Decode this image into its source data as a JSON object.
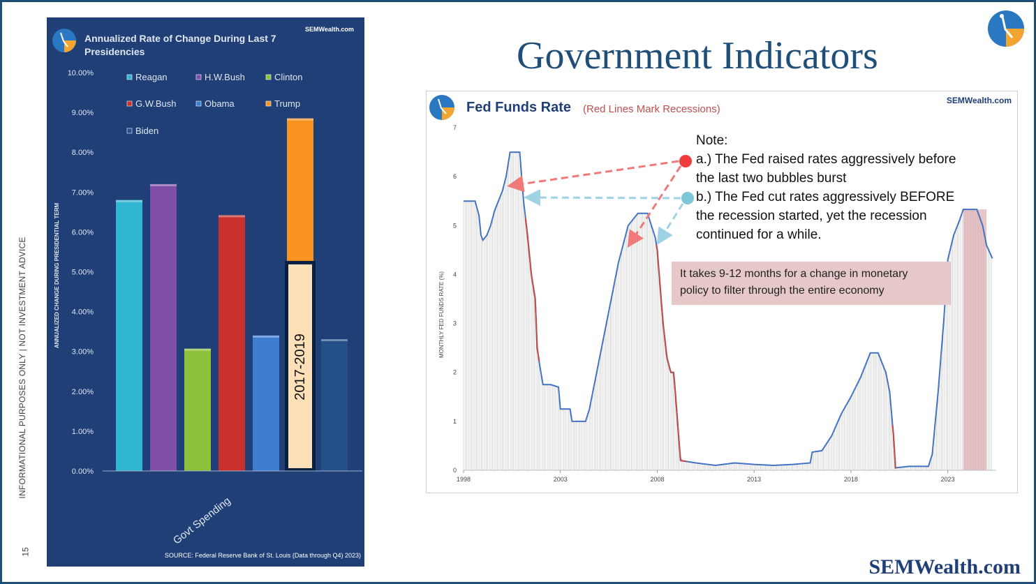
{
  "page": {
    "title": "Government Indicators",
    "side_note": "INFORMATIONAL PURPOSES ONLY | NOT INVESTMENT ADVICE",
    "page_number": "15",
    "brand": "SEMWealth.com"
  },
  "colors": {
    "panel_bg": "#1f3f76",
    "title_blue": "#1f4e79",
    "recession_red": "#c0504d",
    "rate_line": "#4472c4",
    "note_box": "#e6c8c8"
  },
  "chart_data": [
    {
      "type": "bar",
      "title": "Annualized Rate of Change During Last 7 Presidencies",
      "site": "SEMWealth.com",
      "xlabel": "Govt Spending",
      "ylabel": "ANNUALIZED CHANGE DURING PRESIDENTIAL TERM",
      "ylim": [
        0,
        10
      ],
      "yticks": [
        "0.00%",
        "1.00%",
        "2.00%",
        "3.00%",
        "4.00%",
        "5.00%",
        "6.00%",
        "7.00%",
        "8.00%",
        "9.00%",
        "10.00%"
      ],
      "categories": [
        "Govt Spending"
      ],
      "series": [
        {
          "name": "Reagan",
          "values": [
            6.8
          ],
          "color": "#2fb5cf"
        },
        {
          "name": "H.W.Bush",
          "values": [
            7.2
          ],
          "color": "#7f4fa8"
        },
        {
          "name": "Clinton",
          "values": [
            3.07
          ],
          "color": "#8cbf3a"
        },
        {
          "name": "G.W.Bush",
          "values": [
            6.42
          ],
          "color": "#c9302c"
        },
        {
          "name": "Obama",
          "values": [
            3.4
          ],
          "color": "#3d7ed1"
        },
        {
          "name": "Trump",
          "values": [
            8.85
          ],
          "color": "#f7931e"
        },
        {
          "name": "Biden",
          "values": [
            3.31
          ],
          "color": "#244f88"
        }
      ],
      "annotation": {
        "label": "2017-2019",
        "value": 5.22
      },
      "source": "SOURCE:  Federal Reserve Bank of St. Louis (Data through Q4) 2023)",
      "legend_position": "top"
    },
    {
      "type": "line",
      "title": "Fed Funds Rate",
      "subtitle": "(Red Lines Mark Recessions)",
      "site": "SEMWealth.com",
      "ylabel": "MONTHLY FED FUNDS RATE (%)",
      "ylim": [
        0,
        7
      ],
      "yticks": [
        "0",
        "1",
        "2",
        "3",
        "4",
        "5",
        "6",
        "7"
      ],
      "xlim": [
        1998,
        2025.5
      ],
      "xticks": [
        "1998",
        "2003",
        "2008",
        "2013",
        "2018",
        "2023"
      ],
      "x": [
        1998.0,
        1998.3,
        1998.6,
        1998.8,
        1998.9,
        1999.0,
        1999.2,
        1999.4,
        1999.6,
        1999.8,
        2000.0,
        2000.2,
        2000.4,
        2000.5,
        2000.7,
        2000.9,
        2001.0,
        2001.1,
        2001.3,
        2001.5,
        2001.7,
        2001.8,
        2001.95,
        2002.1,
        2002.5,
        2002.9,
        2003.0,
        2003.5,
        2003.6,
        2004.0,
        2004.3,
        2004.5,
        2005.0,
        2005.5,
        2006.0,
        2006.5,
        2007.0,
        2007.3,
        2007.5,
        2007.7,
        2007.9,
        2008.0,
        2008.1,
        2008.3,
        2008.5,
        2008.7,
        2008.85,
        2008.95,
        2009.2,
        2010.0,
        2011.0,
        2012.0,
        2013.0,
        2014.0,
        2015.0,
        2015.9,
        2016.0,
        2016.5,
        2017.0,
        2017.5,
        2018.0,
        2018.5,
        2019.0,
        2019.4,
        2019.6,
        2019.8,
        2020.0,
        2020.2,
        2020.3,
        2021.0,
        2022.0,
        2022.2,
        2022.5,
        2022.8,
        2023.0,
        2023.3,
        2023.6,
        2023.8,
        2024.5,
        2024.8,
        2025.0,
        2025.3
      ],
      "y": [
        5.5,
        5.5,
        5.5,
        5.2,
        4.8,
        4.7,
        4.8,
        5.0,
        5.3,
        5.5,
        5.7,
        6.0,
        6.5,
        6.5,
        6.5,
        6.5,
        6.0,
        5.5,
        4.8,
        4.0,
        3.5,
        2.5,
        2.1,
        1.75,
        1.75,
        1.7,
        1.25,
        1.25,
        1.0,
        1.0,
        1.0,
        1.25,
        2.25,
        3.25,
        4.25,
        5.0,
        5.25,
        5.25,
        5.25,
        5.0,
        4.75,
        4.5,
        4.0,
        3.0,
        2.3,
        2.0,
        2.0,
        1.5,
        0.2,
        0.15,
        0.1,
        0.15,
        0.12,
        0.1,
        0.12,
        0.15,
        0.37,
        0.4,
        0.7,
        1.15,
        1.5,
        1.9,
        2.4,
        2.4,
        2.2,
        2.0,
        1.6,
        0.7,
        0.05,
        0.08,
        0.08,
        0.33,
        1.6,
        3.1,
        4.3,
        4.8,
        5.1,
        5.33,
        5.33,
        5.0,
        4.6,
        4.33
      ],
      "recessions": [
        [
          2001.2,
          2001.9
        ],
        [
          2007.95,
          2009.5
        ],
        [
          2020.15,
          2020.35
        ]
      ],
      "shaded_range": [
        2023.8,
        2025.0
      ]
    }
  ],
  "notes": {
    "heading": "Note:",
    "a_line1": "a.) The Fed raised rates aggressively before",
    "a_line2": "the last two bubbles burst",
    "b_line1": "b.) The Fed cut rates aggressively BEFORE",
    "b_line2": "the recession started, yet the recession",
    "b_line3": "continued for a while.",
    "monetary_line1": "It takes 9-12 months for a change in monetary",
    "monetary_line2": "policy to filter through the entire economy"
  }
}
